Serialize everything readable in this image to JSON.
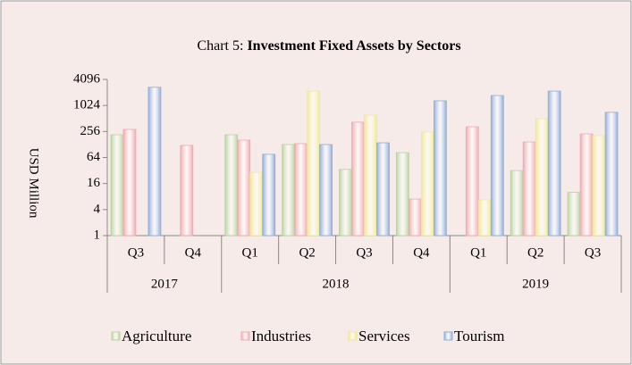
{
  "chart_data": {
    "type": "bar",
    "title_label": "Chart 5:",
    "title": "Investment Fixed Assets by Sectors",
    "y_label": "USD Million",
    "categories": [
      "Q3",
      "Q4",
      "Q1",
      "Q2",
      "Q3",
      "Q4",
      "Q1",
      "Q2",
      "Q3"
    ],
    "category_groups": [
      "2017",
      "2017",
      "2018",
      "2018",
      "2018",
      "2018",
      "2019",
      "2019",
      "2019"
    ],
    "series": [
      {
        "name": "Agriculture",
        "color": "#b9d49c",
        "values": [
          215,
          null,
          215,
          128,
          34,
          83,
          null,
          32,
          10
        ]
      },
      {
        "name": "Industries",
        "color": "#f2a9ae",
        "values": [
          286,
          122,
          162,
          134,
          420,
          7,
          330,
          147,
          226
        ]
      },
      {
        "name": "Services",
        "color": "#efea8e",
        "values": [
          null,
          null,
          29,
          2200,
          610,
          249,
          6.7,
          505,
          205
        ]
      },
      {
        "name": "Tourism",
        "color": "#8eaedc",
        "values": [
          2700,
          null,
          76,
          128,
          140,
          1310,
          1740,
          2200,
          710
        ]
      }
    ],
    "log_scale": true,
    "log_base": 2,
    "ylim": [
      1,
      4096
    ],
    "yticks": [
      1,
      4,
      16,
      64,
      256,
      1024,
      4096
    ],
    "grid": false,
    "legend": "bottom"
  }
}
